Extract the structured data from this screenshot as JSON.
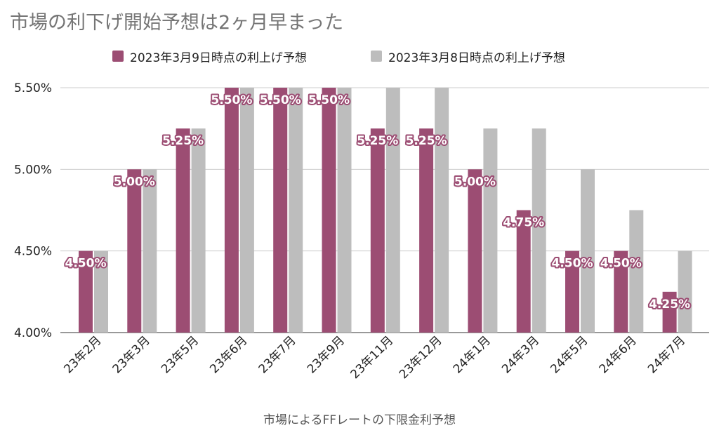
{
  "chart_data": {
    "type": "bar",
    "title": "市場の利下げ開始予想は2ヶ月早まった",
    "xlabel": "市場によるFFレートの下限金利予想",
    "ylabel": "",
    "ylim": [
      4.0,
      5.5
    ],
    "yticks": [
      "4.00%",
      "4.50%",
      "5.00%",
      "5.50%"
    ],
    "grid": true,
    "legend_position": "top-center",
    "categories": [
      "23年2月",
      "23年3月",
      "23年5月",
      "23年6月",
      "23年7月",
      "23年9月",
      "23年11月",
      "23年12月",
      "24年1月",
      "24年3月",
      "24年5月",
      "24年6月",
      "24年7月"
    ],
    "series": [
      {
        "name": "2023年3月9日時点の利上げ予想",
        "color": "#9c4d73",
        "values": [
          4.5,
          5.0,
          5.25,
          5.5,
          5.5,
          5.5,
          5.25,
          5.25,
          5.0,
          4.75,
          4.5,
          4.5,
          4.25
        ],
        "data_labels": [
          "4.50%",
          "5.00%",
          "5.25%",
          "5.50%",
          "5.50%",
          "5.50%",
          "5.25%",
          "5.25%",
          "5.00%",
          "4.75%",
          "4.50%",
          "4.50%",
          "4.25%"
        ]
      },
      {
        "name": "2023年3月8日時点の利上げ予想",
        "color": "#bdbdbd",
        "values": [
          4.5,
          5.0,
          5.25,
          5.5,
          5.5,
          5.5,
          5.5,
          5.5,
          5.25,
          5.25,
          5.0,
          4.75,
          4.5
        ]
      }
    ]
  }
}
